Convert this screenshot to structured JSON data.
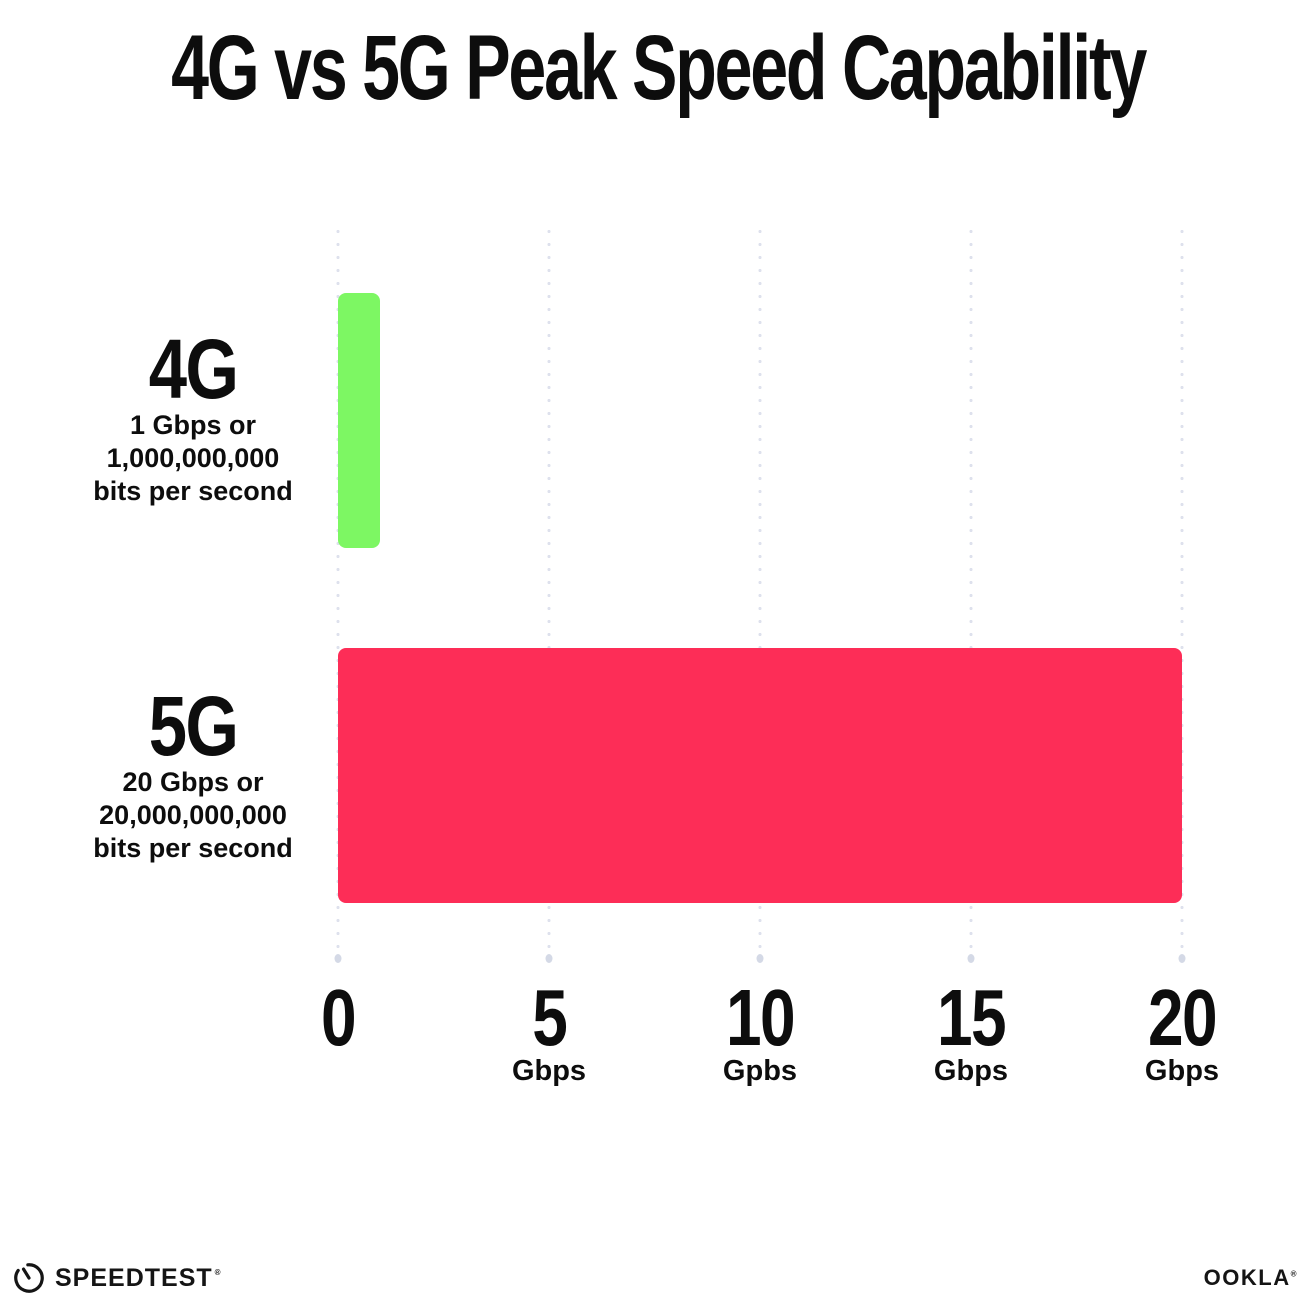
{
  "title": "4G vs 5G Peak Speed Capability",
  "chart_data": {
    "type": "bar",
    "orientation": "horizontal",
    "title": "4G vs 5G Peak Speed Capability",
    "categories": [
      "4G",
      "5G"
    ],
    "values": [
      1,
      20
    ],
    "value_unit": "Gbps",
    "xlim": [
      0,
      20
    ],
    "grid": "vertical dotted gridlines at 0, 5, 10, 15, 20",
    "bars": [
      {
        "label": "4G",
        "sublabel_line1": "1 Gbps or",
        "sublabel_line2": "1,000,000,000",
        "sublabel_line3": "bits per second",
        "value": 1,
        "color": "#7df763"
      },
      {
        "label": "5G",
        "sublabel_line1": "20 Gbps or",
        "sublabel_line2": "20,000,000,000",
        "sublabel_line3": "bits per second",
        "value": 20,
        "color": "#fd2d57"
      }
    ],
    "x_ticks": [
      {
        "label": "0",
        "unit": ""
      },
      {
        "label": "5",
        "unit": "Gbps"
      },
      {
        "label": "10",
        "unit": "Gpbs"
      },
      {
        "label": "15",
        "unit": "Gbps"
      },
      {
        "label": "20",
        "unit": "Gbps"
      }
    ]
  },
  "footer": {
    "speedtest_wordmark": "SPEEDTEST",
    "speedtest_trademark": "®",
    "speedtest_icon": "speedometer-gauge-icon",
    "ookla_wordmark": "OOKLA",
    "ookla_trademark": "®"
  },
  "colors": {
    "background": "#ffffff",
    "text": "#0d0d0d",
    "gridline_dot": "#dee1ed",
    "gridline_end_dot": "#d4d9e6",
    "bar_4g": "#7df763",
    "bar_5g": "#fd2d57"
  }
}
